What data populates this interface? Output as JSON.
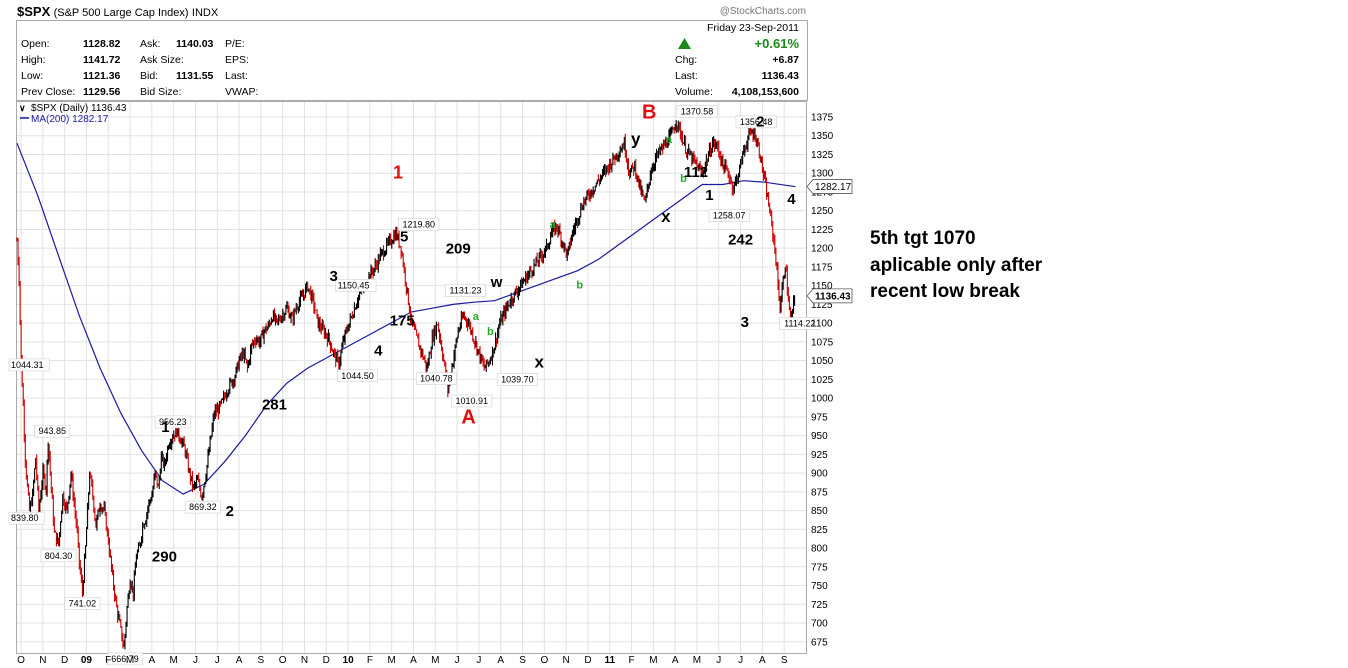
{
  "header": {
    "symbol": "$SPX",
    "name": "(S&P 500 Large Cap Index)",
    "exchange": "INDX",
    "credit": "@StockCharts.com"
  },
  "quote": {
    "labels": {
      "open": "Open:",
      "high": "High:",
      "low": "Low:",
      "prev_close": "Prev Close:",
      "ask": "Ask:",
      "ask_size": "Ask Size:",
      "bid": "Bid:",
      "bid_size": "Bid Size:",
      "pe": "P/E:",
      "eps": "EPS:",
      "last_l": "Last:",
      "vwap": "VWAP:",
      "chg": "Chg:",
      "last": "Last:",
      "volume": "Volume:"
    },
    "open": "1128.82",
    "high": "1141.72",
    "low": "1121.36",
    "prev_close": "1129.56",
    "ask": "1140.03",
    "bid": "1131.55",
    "date": "Friday   23-Sep-2011",
    "pct": "+0.61%",
    "chg": "+6.87",
    "last": "1136.43",
    "volume": "4,108,153,600",
    "up_color": "#1a8a1a"
  },
  "side_note": {
    "line1": "5th tgt 1070",
    "line2": "aplicable only after",
    "line3": "recent low break"
  },
  "chart_data": {
    "type": "line",
    "title": "$SPX (Daily) 1136.43",
    "legend": [
      "$SPX (Daily) 1136.43",
      "MA(200) 1282.17"
    ],
    "legend_placement": "top-left",
    "ylim": [
      660,
      1395
    ],
    "y_ticks": [
      675,
      700,
      725,
      750,
      775,
      800,
      825,
      850,
      875,
      900,
      925,
      950,
      975,
      1000,
      1025,
      1050,
      1075,
      1100,
      1125,
      1150,
      1175,
      1200,
      1225,
      1250,
      1275,
      1300,
      1325,
      1350,
      1375
    ],
    "x_ticks": [
      "O",
      "N",
      "D",
      "09",
      "F",
      "M",
      "A",
      "M",
      "J",
      "J",
      "A",
      "S",
      "O",
      "N",
      "D",
      "10",
      "F",
      "M",
      "A",
      "M",
      "J",
      "J",
      "A",
      "S",
      "O",
      "N",
      "D",
      "11",
      "F",
      "M",
      "A",
      "M",
      "J",
      "J",
      "A",
      "S"
    ],
    "last_price": {
      "value": 1136.43,
      "label": "1136.43"
    },
    "ma_last": {
      "value": 1282.17,
      "label": "1282.17"
    },
    "price_series": {
      "name": "$SPX",
      "color": "#000000",
      "down_color": "#cc0000",
      "t": [
        0,
        2,
        4,
        6,
        8,
        10,
        12,
        15,
        18,
        21,
        25,
        28,
        30,
        33,
        36,
        40,
        44,
        48,
        52,
        55,
        58,
        60,
        63,
        66,
        68,
        70,
        73,
        76,
        80,
        84,
        88,
        92,
        96,
        100,
        103,
        106,
        109,
        112,
        115,
        118,
        121,
        124,
        127,
        130,
        133,
        136,
        139,
        142,
        146,
        150,
        154,
        158,
        162,
        166,
        170,
        174,
        178,
        182,
        186,
        190,
        194,
        198,
        202,
        206,
        210,
        214,
        218,
        222,
        226,
        230,
        234,
        238,
        242,
        246,
        250,
        255,
        260,
        265,
        270,
        275,
        280,
        285,
        290,
        295,
        300,
        305,
        310,
        315,
        320,
        325,
        330,
        335,
        340,
        345,
        350,
        355,
        360,
        365,
        370,
        375,
        380,
        385,
        390,
        395,
        400,
        405,
        410,
        415,
        420,
        425,
        430,
        435,
        440,
        445,
        450,
        455,
        460,
        465,
        470,
        475,
        480,
        485,
        490,
        495,
        500,
        505,
        510,
        515,
        520,
        525,
        530,
        535,
        540,
        545,
        550,
        555,
        560,
        565,
        570,
        575,
        580,
        585,
        590,
        595,
        600,
        605,
        610,
        615,
        620,
        625,
        630,
        635,
        640,
        645,
        650,
        655,
        660,
        665,
        670,
        675,
        680,
        685,
        690,
        695,
        700,
        705,
        710,
        715,
        720,
        725,
        730,
        735,
        740,
        745,
        750
      ],
      "v": [
        1210,
        1160,
        1050,
        990,
        920,
        880,
        850,
        870,
        920,
        850,
        900,
        880,
        945,
        880,
        820,
        805,
        870,
        850,
        900,
        860,
        820,
        780,
        741,
        800,
        850,
        900,
        870,
        830,
        860,
        850,
        810,
        760,
        720,
        690,
        667,
        720,
        760,
        740,
        790,
        800,
        830,
        840,
        860,
        870,
        900,
        880,
        920,
        910,
        940,
        950,
        956,
        945,
        930,
        900,
        880,
        890,
        869,
        900,
        940,
        980,
        985,
        995,
        1010,
        1020,
        1030,
        1050,
        1060,
        1040,
        1070,
        1080,
        1075,
        1090,
        1095,
        1110,
        1100,
        1110,
        1120,
        1105,
        1125,
        1135,
        1150,
        1130,
        1100,
        1090,
        1080,
        1060,
        1045,
        1080,
        1100,
        1120,
        1140,
        1150,
        1165,
        1175,
        1190,
        1200,
        1210,
        1220,
        1200,
        1150,
        1100,
        1080,
        1060,
        1040,
        1080,
        1100,
        1060,
        1011,
        1050,
        1090,
        1110,
        1100,
        1080,
        1060,
        1040,
        1050,
        1070,
        1100,
        1115,
        1130,
        1140,
        1150,
        1160,
        1170,
        1180,
        1190,
        1200,
        1220,
        1230,
        1210,
        1190,
        1220,
        1240,
        1260,
        1270,
        1280,
        1290,
        1300,
        1310,
        1320,
        1330,
        1340,
        1300,
        1310,
        1280,
        1260,
        1300,
        1320,
        1330,
        1340,
        1350,
        1370,
        1350,
        1330,
        1320,
        1310,
        1300,
        1320,
        1340,
        1335,
        1310,
        1300,
        1280,
        1300,
        1330,
        1350,
        1356,
        1330,
        1290,
        1250,
        1200,
        1120,
        1180,
        1100,
        1140,
        1190,
        1170,
        1200,
        1210,
        1160,
        1120,
        1136
      ]
    },
    "ma_series": {
      "name": "MA(200)",
      "color": "#1a1aa0",
      "t": [
        0,
        20,
        40,
        60,
        80,
        100,
        120,
        140,
        160,
        180,
        200,
        220,
        240,
        260,
        280,
        300,
        320,
        340,
        360,
        380,
        400,
        420,
        440,
        460,
        480,
        500,
        520,
        540,
        560,
        580,
        600,
        620,
        640,
        660,
        680,
        700,
        720,
        740,
        750
      ],
      "v": [
        1340,
        1270,
        1190,
        1110,
        1040,
        980,
        930,
        890,
        872,
        885,
        915,
        950,
        990,
        1020,
        1040,
        1055,
        1070,
        1085,
        1100,
        1115,
        1120,
        1125,
        1128,
        1130,
        1140,
        1150,
        1160,
        1170,
        1185,
        1205,
        1225,
        1245,
        1265,
        1285,
        1285,
        1290,
        1288,
        1284,
        1282
      ]
    },
    "price_labels": [
      {
        "t": 13,
        "v": 1044.31,
        "text": "1044.31",
        "side": "left"
      },
      {
        "t": 15,
        "v": 839.8,
        "text": "839.80",
        "side": "left"
      },
      {
        "t": 34,
        "v": 943.85,
        "text": "943.85",
        "side": "center",
        "pos": "above"
      },
      {
        "t": 40,
        "v": 804.3,
        "text": "804.30",
        "side": "center",
        "pos": "below"
      },
      {
        "t": 63,
        "v": 741.02,
        "text": "741.02",
        "side": "center",
        "pos": "below"
      },
      {
        "t": 104,
        "v": 666.79,
        "text": "666.79",
        "side": "center",
        "pos": "below"
      },
      {
        "t": 150,
        "v": 956.23,
        "text": "956.23",
        "side": "center",
        "pos": "above"
      },
      {
        "t": 179,
        "v": 869.32,
        "text": "869.32",
        "side": "center",
        "pos": "below"
      },
      {
        "t": 305,
        "v": 1150.45,
        "text": "1150.45",
        "side": "right"
      },
      {
        "t": 328,
        "v": 1044.5,
        "text": "1044.50",
        "side": "center",
        "pos": "below"
      },
      {
        "t": 387,
        "v": 1219.8,
        "text": "1219.80",
        "side": "center",
        "pos": "above"
      },
      {
        "t": 404,
        "v": 1040.78,
        "text": "1040.78",
        "side": "center",
        "pos": "below"
      },
      {
        "t": 432,
        "v": 1131.23,
        "text": "1131.23",
        "side": "center",
        "pos": "above"
      },
      {
        "t": 438,
        "v": 1010.91,
        "text": "1010.91",
        "side": "center",
        "pos": "below"
      },
      {
        "t": 482,
        "v": 1039.7,
        "text": "1039.70",
        "side": "center",
        "pos": "below"
      },
      {
        "t": 655,
        "v": 1370.58,
        "text": "1370.58",
        "side": "center",
        "pos": "above"
      },
      {
        "t": 686,
        "v": 1258.07,
        "text": "1258.07",
        "side": "center",
        "pos": "below"
      },
      {
        "t": 712,
        "v": 1356.48,
        "text": "1356.48",
        "side": "center",
        "pos": "above"
      },
      {
        "t": 754,
        "v": 1114.22,
        "text": "1114.22",
        "side": "center",
        "pos": "below"
      }
    ],
    "annotations": [
      {
        "text": "1",
        "t": 143,
        "v": 955,
        "color": "#000000",
        "size": 15
      },
      {
        "text": "2",
        "t": 205,
        "v": 843,
        "color": "#000000",
        "size": 15
      },
      {
        "text": "290",
        "t": 142,
        "v": 782,
        "color": "#000000",
        "size": 15
      },
      {
        "text": "281",
        "t": 248,
        "v": 985,
        "color": "#000000",
        "size": 15
      },
      {
        "text": "3",
        "t": 305,
        "v": 1156,
        "color": "#000000",
        "size": 15
      },
      {
        "text": "4",
        "t": 348,
        "v": 1057,
        "color": "#000000",
        "size": 15
      },
      {
        "text": "175",
        "t": 371,
        "v": 1097,
        "color": "#000000",
        "size": 15
      },
      {
        "text": "5",
        "t": 373,
        "v": 1209,
        "color": "#000000",
        "size": 15
      },
      {
        "text": "1",
        "t": 367,
        "v": 1293,
        "color": "#dd1111",
        "size": 18
      },
      {
        "text": "209",
        "t": 425,
        "v": 1193,
        "color": "#000000",
        "size": 15
      },
      {
        "text": "w",
        "t": 462,
        "v": 1148,
        "color": "#000000",
        "size": 15
      },
      {
        "text": "a",
        "t": 442,
        "v": 1104,
        "color": "#22aa22",
        "size": 11
      },
      {
        "text": "b",
        "t": 456,
        "v": 1084,
        "color": "#22aa22",
        "size": 11
      },
      {
        "text": "A",
        "t": 435,
        "v": 966,
        "color": "#dd1111",
        "size": 20
      },
      {
        "text": "x",
        "t": 503,
        "v": 1041,
        "color": "#000000",
        "size": 17
      },
      {
        "text": "a",
        "t": 516,
        "v": 1227,
        "color": "#22aa22",
        "size": 11
      },
      {
        "text": "b",
        "t": 542,
        "v": 1146,
        "color": "#22aa22",
        "size": 11
      },
      {
        "text": "B",
        "t": 609,
        "v": 1373,
        "color": "#dd1111",
        "size": 20
      },
      {
        "text": "y",
        "t": 596,
        "v": 1338,
        "color": "#000000",
        "size": 17
      },
      {
        "text": "a",
        "t": 628,
        "v": 1340,
        "color": "#22aa22",
        "size": 11
      },
      {
        "text": "b",
        "t": 642,
        "v": 1288,
        "color": "#22aa22",
        "size": 11
      },
      {
        "text": "112",
        "t": 654,
        "v": 1295,
        "color": "#000000",
        "size": 15
      },
      {
        "text": "x",
        "t": 625,
        "v": 1235,
        "color": "#000000",
        "size": 17
      },
      {
        "text": "1",
        "t": 667,
        "v": 1264,
        "color": "#000000",
        "size": 15
      },
      {
        "text": "2",
        "t": 716,
        "v": 1362,
        "color": "#000000",
        "size": 15
      },
      {
        "text": "4",
        "t": 746,
        "v": 1259,
        "color": "#000000",
        "size": 15
      },
      {
        "text": "242",
        "t": 697,
        "v": 1205,
        "color": "#000000",
        "size": 15
      },
      {
        "text": "3",
        "t": 701,
        "v": 1095,
        "color": "#000000",
        "size": 15
      }
    ]
  }
}
